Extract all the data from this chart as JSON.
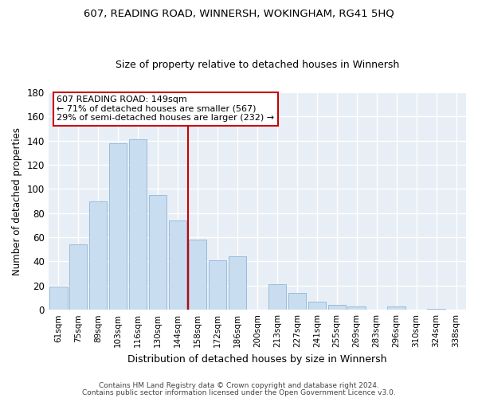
{
  "title1": "607, READING ROAD, WINNERSH, WOKINGHAM, RG41 5HQ",
  "title2": "Size of property relative to detached houses in Winnersh",
  "xlabel": "Distribution of detached houses by size in Winnersh",
  "ylabel": "Number of detached properties",
  "bar_labels": [
    "61sqm",
    "75sqm",
    "89sqm",
    "103sqm",
    "116sqm",
    "130sqm",
    "144sqm",
    "158sqm",
    "172sqm",
    "186sqm",
    "200sqm",
    "213sqm",
    "227sqm",
    "241sqm",
    "255sqm",
    "269sqm",
    "283sqm",
    "296sqm",
    "310sqm",
    "324sqm",
    "338sqm"
  ],
  "bar_values": [
    19,
    54,
    90,
    138,
    141,
    95,
    74,
    58,
    41,
    44,
    0,
    21,
    14,
    7,
    4,
    3,
    0,
    3,
    0,
    1,
    0
  ],
  "bar_color": "#c8ddf0",
  "bar_edge_color": "#9abcd8",
  "vline_x": 6.5,
  "vline_color": "#cc0000",
  "annotation_title": "607 READING ROAD: 149sqm",
  "annotation_line1": "← 71% of detached houses are smaller (567)",
  "annotation_line2": "29% of semi-detached houses are larger (232) →",
  "annotation_box_color": "#ffffff",
  "annotation_box_edge": "#cc0000",
  "ylim": [
    0,
    180
  ],
  "bg_color": "#ffffff",
  "plot_bg_color": "#e8eef5",
  "grid_color": "#ffffff",
  "footnote1": "Contains HM Land Registry data © Crown copyright and database right 2024.",
  "footnote2": "Contains public sector information licensed under the Open Government Licence v3.0."
}
